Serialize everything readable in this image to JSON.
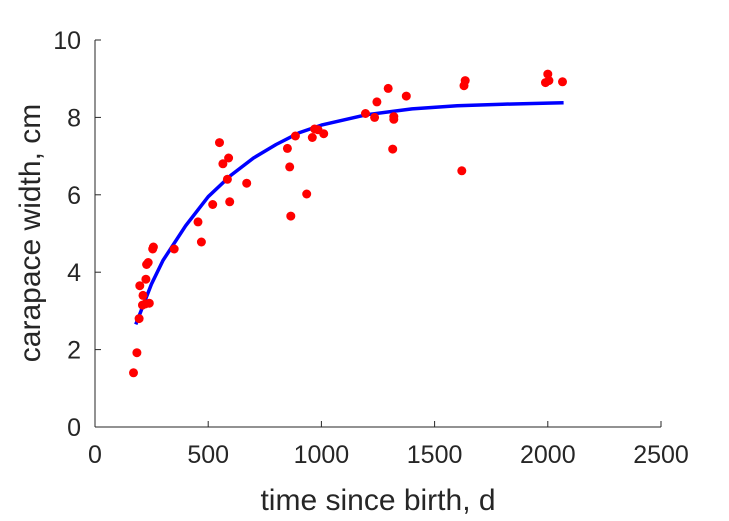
{
  "chart_data": {
    "type": "scatter",
    "title": "",
    "xlabel": "time since birth, d",
    "ylabel": "carapace width, cm",
    "xlim": [
      0,
      2500
    ],
    "ylim": [
      0,
      10
    ],
    "xticks": [
      0,
      500,
      1000,
      1500,
      2000,
      2500
    ],
    "yticks": [
      0,
      2,
      4,
      6,
      8,
      10
    ],
    "grid": false,
    "colors": {
      "points": "#ff0000",
      "fit": "#0000ff",
      "axis": "#262626"
    },
    "series": [
      {
        "kind": "points",
        "x": [
          170,
          185,
          195,
          198,
          210,
          212,
          222,
          225,
          228,
          235,
          240,
          255,
          258,
          350,
          455,
          470,
          520,
          550,
          565,
          585,
          590,
          595,
          670,
          850,
          860,
          865,
          885,
          935,
          960,
          970,
          985,
          1010,
          1195,
          1235,
          1245,
          1295,
          1315,
          1320,
          1320,
          1375,
          1620,
          1630,
          1635,
          1990,
          2000,
          2005,
          2065
        ],
        "y": [
          1.4,
          1.92,
          2.8,
          3.65,
          3.15,
          3.4,
          3.18,
          3.82,
          4.2,
          4.25,
          3.2,
          4.6,
          4.65,
          4.6,
          5.3,
          4.78,
          5.75,
          7.35,
          6.8,
          6.4,
          6.95,
          5.82,
          6.3,
          7.2,
          6.72,
          5.45,
          7.52,
          6.02,
          7.48,
          7.7,
          7.68,
          7.58,
          8.1,
          8.0,
          8.4,
          8.75,
          7.18,
          7.95,
          8.02,
          8.55,
          6.62,
          8.82,
          8.95,
          8.9,
          9.12,
          8.95,
          8.92
        ]
      },
      {
        "kind": "line",
        "x": [
          180,
          250,
          300,
          400,
          500,
          600,
          700,
          800,
          900,
          1000,
          1200,
          1400,
          1600,
          1800,
          2000,
          2070
        ],
        "y": [
          2.65,
          3.7,
          4.3,
          5.2,
          5.95,
          6.5,
          6.95,
          7.3,
          7.6,
          7.8,
          8.07,
          8.22,
          8.3,
          8.34,
          8.37,
          8.38
        ]
      }
    ]
  }
}
